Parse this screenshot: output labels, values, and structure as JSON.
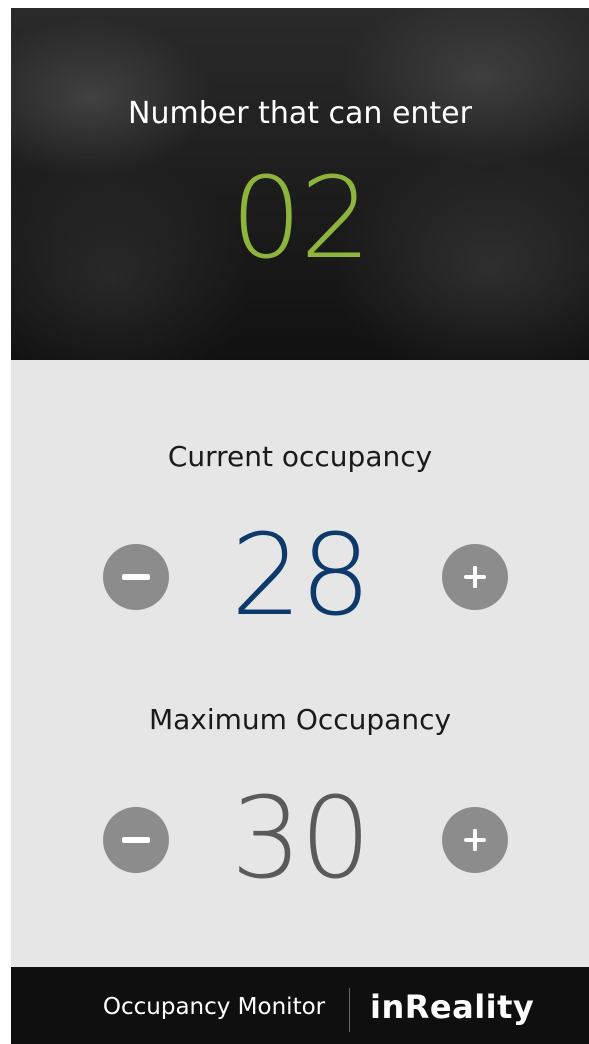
{
  "header": {
    "title": "Number that can enter",
    "value": "02"
  },
  "current": {
    "label": "Current occupancy",
    "value": "28"
  },
  "maximum": {
    "label": "Maximum Occupancy",
    "value": "30"
  },
  "footer": {
    "app": "Occupancy Monitor",
    "brand": "inReality"
  }
}
